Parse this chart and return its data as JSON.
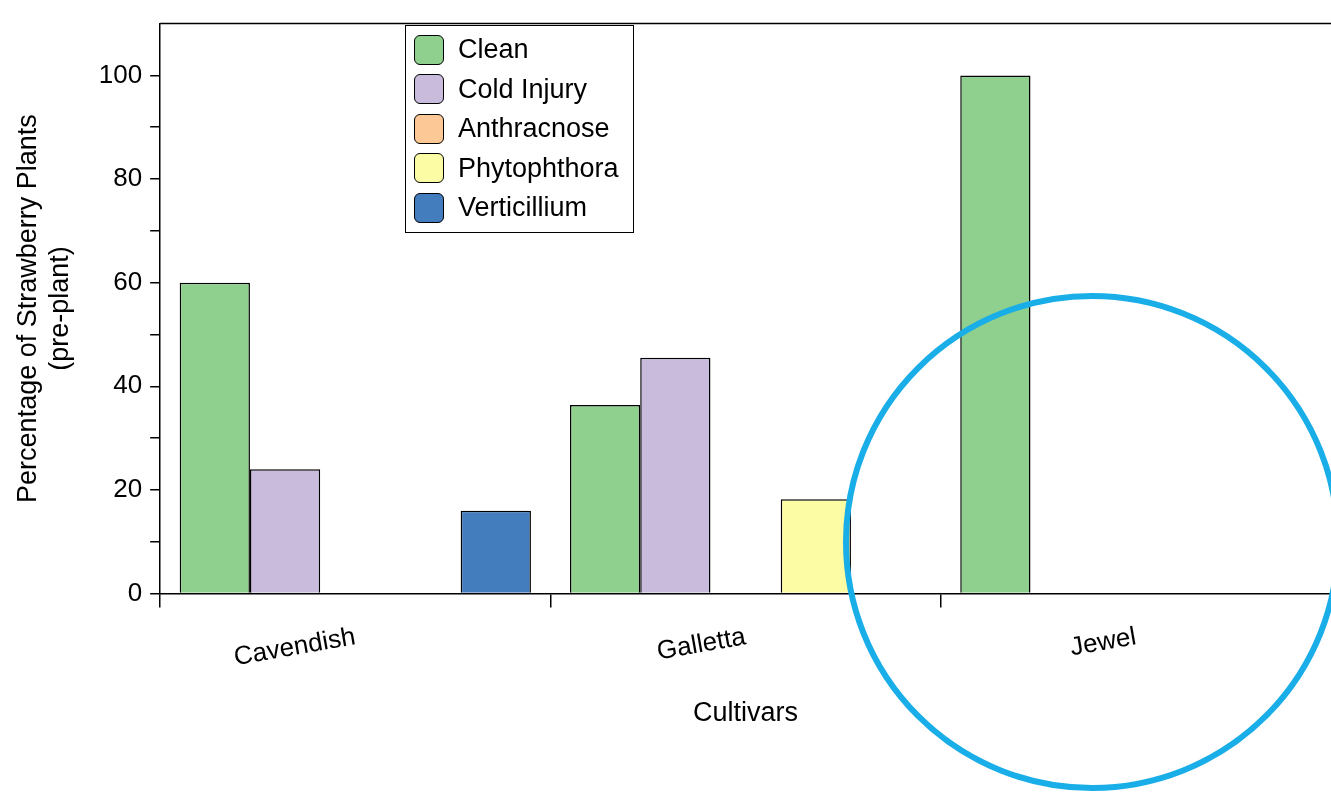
{
  "chart_data": {
    "type": "bar",
    "xlabel": "Cultivars",
    "ylabel": "Percentage of Strawberry Plants\n(pre-plant)",
    "categories": [
      "Cavendish",
      "Galletta",
      "Jewel"
    ],
    "series": [
      {
        "name": "Clean",
        "color": "#8fd08e",
        "values": [
          60,
          36.4,
          100
        ]
      },
      {
        "name": "Cold Injury",
        "color": "#c8bbdc",
        "values": [
          24,
          45.5,
          0
        ]
      },
      {
        "name": "Anthracnose",
        "color": "#fcc896",
        "values": [
          0,
          0,
          0
        ]
      },
      {
        "name": "Phytophthora",
        "color": "#fbfca3",
        "values": [
          0,
          18.2,
          0
        ]
      },
      {
        "name": "Verticillium",
        "color": "#447dbe",
        "values": [
          16,
          0,
          0
        ]
      }
    ],
    "ylim": [
      0,
      110
    ],
    "yticks": [
      0,
      {
        "value": 10,
        "label": null
      },
      20,
      {
        "value": 30,
        "label": null
      },
      40,
      {
        "value": 50,
        "label": null
      },
      60,
      {
        "value": 70,
        "label": null
      },
      80,
      {
        "value": 90,
        "label": null
      },
      100
    ],
    "grid": false,
    "legend": "top left"
  }
}
